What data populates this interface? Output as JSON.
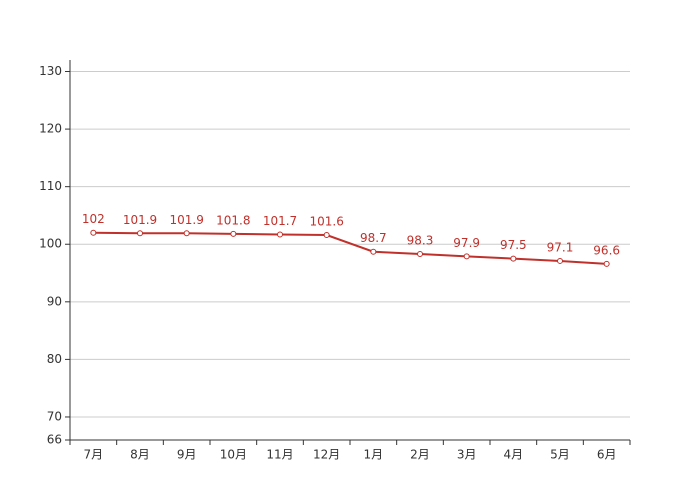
{
  "chart_data": {
    "type": "line",
    "categories": [
      "7月",
      "8月",
      "9月",
      "10月",
      "11月",
      "12月",
      "1月",
      "2月",
      "3月",
      "4月",
      "5月",
      "6月"
    ],
    "values": [
      102,
      101.9,
      101.9,
      101.8,
      101.7,
      101.6,
      98.7,
      98.3,
      97.9,
      97.5,
      97.1,
      96.6
    ],
    "color": "#c0312b",
    "ylim": [
      66,
      132
    ],
    "yticks": [
      66,
      70,
      80,
      90,
      100,
      110,
      120,
      130
    ],
    "grid": true
  }
}
